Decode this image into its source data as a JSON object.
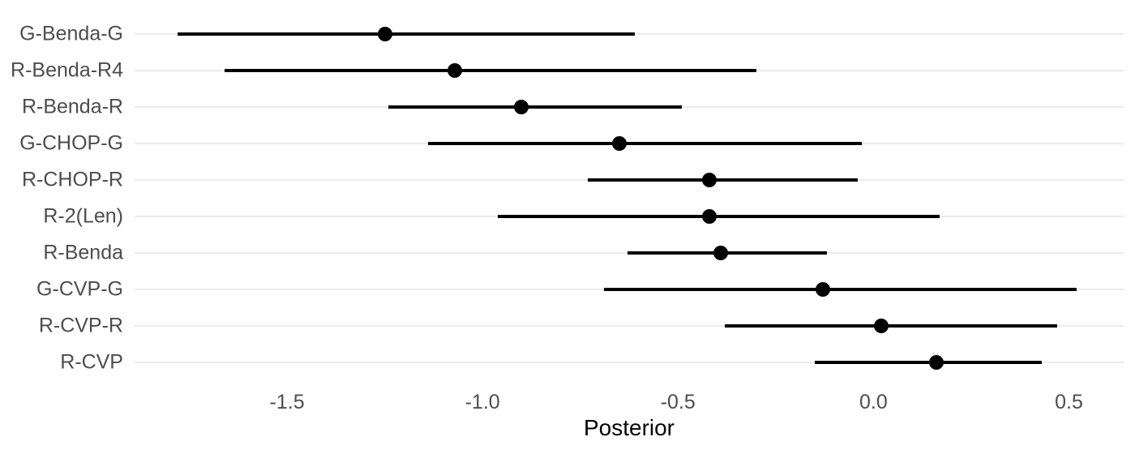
{
  "chart_data": {
    "type": "scatter",
    "subtype": "forest-interval-plot",
    "title": "",
    "xlabel": "Posterior",
    "ylabel": "",
    "xlim": [
      -1.89,
      0.64
    ],
    "x_ticks": [
      -1.5,
      -1.0,
      -0.5,
      0.0,
      0.5
    ],
    "x_tick_labels": [
      "-1.5",
      "-1.0",
      "-0.5",
      "0.0",
      "0.5"
    ],
    "grid": "horizontal-major-only",
    "legend": "none",
    "rows": [
      {
        "label": "G-Benda-G",
        "estimate": -1.25,
        "lower": -1.78,
        "upper": -0.61
      },
      {
        "label": "R-Benda-R4",
        "estimate": -1.07,
        "lower": -1.66,
        "upper": -0.3
      },
      {
        "label": "R-Benda-R",
        "estimate": -0.9,
        "lower": -1.24,
        "upper": -0.49
      },
      {
        "label": "G-CHOP-G",
        "estimate": -0.65,
        "lower": -1.14,
        "upper": -0.03
      },
      {
        "label": "R-CHOP-R",
        "estimate": -0.42,
        "lower": -0.73,
        "upper": -0.04
      },
      {
        "label": "R-2(Len)",
        "estimate": -0.42,
        "lower": -0.96,
        "upper": 0.17
      },
      {
        "label": "R-Benda",
        "estimate": -0.39,
        "lower": -0.63,
        "upper": -0.12
      },
      {
        "label": "G-CVP-G",
        "estimate": -0.13,
        "lower": -0.69,
        "upper": 0.52
      },
      {
        "label": "R-CVP-R",
        "estimate": 0.02,
        "lower": -0.38,
        "upper": 0.47
      },
      {
        "label": "R-CVP",
        "estimate": 0.16,
        "lower": -0.15,
        "upper": 0.43
      }
    ],
    "colors": {
      "background": "#ffffff",
      "gridline": "#ebebeb",
      "interval": "#000000",
      "point": "#000000",
      "axis_text": "#4d4d4d",
      "axis_title": "#000000"
    }
  }
}
